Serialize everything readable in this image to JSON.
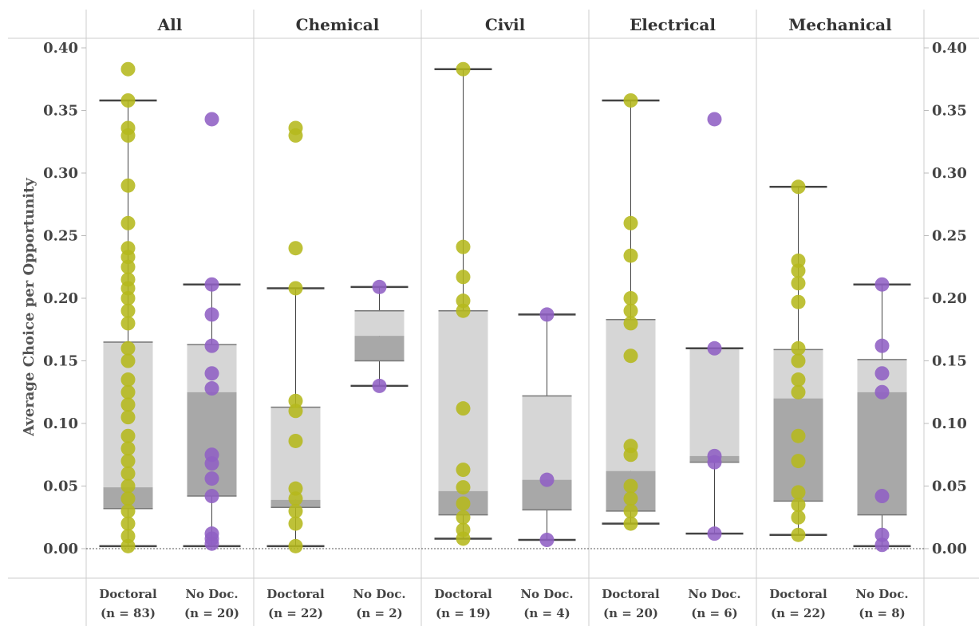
{
  "chart_data": {
    "type": "box",
    "ylabel": "Average Choice per Opportunity",
    "ylim": [
      0,
      0.4
    ],
    "yticks": [
      "0.00",
      "0.05",
      "0.10",
      "0.15",
      "0.20",
      "0.25",
      "0.30",
      "0.35",
      "0.40"
    ],
    "colors": {
      "Doctoral": "#b5b81c",
      "No Doc.": "#9060c4"
    },
    "panels": [
      {
        "title": "All",
        "groups": [
          {
            "label": "Doctoral",
            "n_label": "(n = 83)",
            "series": "Doctoral",
            "box": {
              "whisker_low": 0.002,
              "q1": 0.032,
              "median": 0.049,
              "q3": 0.165,
              "whisker_high": 0.358
            },
            "points": [
              0.383,
              0.358,
              0.336,
              0.33,
              0.29,
              0.26,
              0.24,
              0.233,
              0.225,
              0.215,
              0.208,
              0.2,
              0.19,
              0.18,
              0.16,
              0.15,
              0.135,
              0.125,
              0.115,
              0.105,
              0.09,
              0.08,
              0.07,
              0.06,
              0.05,
              0.04,
              0.03,
              0.02,
              0.01,
              0.002
            ]
          },
          {
            "label": "No Doc.",
            "n_label": "(n = 20)",
            "series": "No Doc.",
            "box": {
              "whisker_low": 0.002,
              "q1": 0.042,
              "median": 0.125,
              "q3": 0.163,
              "whisker_high": 0.211
            },
            "points": [
              0.343,
              0.211,
              0.187,
              0.162,
              0.14,
              0.128,
              0.075,
              0.068,
              0.056,
              0.042,
              0.012,
              0.008,
              0.004
            ]
          }
        ]
      },
      {
        "title": "Chemical",
        "groups": [
          {
            "label": "Doctoral",
            "n_label": "(n = 22)",
            "series": "Doctoral",
            "box": {
              "whisker_low": 0.002,
              "q1": 0.033,
              "median": 0.039,
              "q3": 0.113,
              "whisker_high": 0.208
            },
            "points": [
              0.336,
              0.33,
              0.24,
              0.208,
              0.118,
              0.11,
              0.086,
              0.048,
              0.04,
              0.03,
              0.02,
              0.002
            ]
          },
          {
            "label": "No Doc.",
            "n_label": "(n = 2)",
            "series": "No Doc.",
            "box": {
              "whisker_low": 0.13,
              "q1": 0.15,
              "median": 0.17,
              "q3": 0.19,
              "whisker_high": 0.209
            },
            "points": [
              0.209,
              0.13
            ]
          }
        ]
      },
      {
        "title": "Civil",
        "groups": [
          {
            "label": "Doctoral",
            "n_label": "(n = 19)",
            "series": "Doctoral",
            "box": {
              "whisker_low": 0.008,
              "q1": 0.027,
              "median": 0.046,
              "q3": 0.19,
              "whisker_high": 0.383
            },
            "points": [
              0.383,
              0.241,
              0.217,
              0.198,
              0.19,
              0.112,
              0.063,
              0.049,
              0.036,
              0.025,
              0.015,
              0.008
            ]
          },
          {
            "label": "No Doc.",
            "n_label": "(n = 4)",
            "series": "No Doc.",
            "box": {
              "whisker_low": 0.007,
              "q1": 0.031,
              "median": 0.055,
              "q3": 0.122,
              "whisker_high": 0.187
            },
            "points": [
              0.187,
              0.055,
              0.007
            ]
          }
        ]
      },
      {
        "title": "Electrical",
        "groups": [
          {
            "label": "Doctoral",
            "n_label": "(n = 20)",
            "series": "Doctoral",
            "box": {
              "whisker_low": 0.02,
              "q1": 0.03,
              "median": 0.062,
              "q3": 0.183,
              "whisker_high": 0.358
            },
            "points": [
              0.358,
              0.26,
              0.234,
              0.2,
              0.19,
              0.18,
              0.154,
              0.082,
              0.075,
              0.05,
              0.04,
              0.03,
              0.02
            ]
          },
          {
            "label": "No Doc.",
            "n_label": "(n = 6)",
            "series": "No Doc.",
            "box": {
              "whisker_low": 0.012,
              "q1": 0.069,
              "median": 0.074,
              "q3": 0.16,
              "whisker_high": 0.16
            },
            "points": [
              0.343,
              0.16,
              0.074,
              0.069,
              0.012
            ]
          }
        ]
      },
      {
        "title": "Mechanical",
        "groups": [
          {
            "label": "Doctoral",
            "n_label": "(n =  22)",
            "series": "Doctoral",
            "box": {
              "whisker_low": 0.011,
              "q1": 0.038,
              "median": 0.12,
              "q3": 0.159,
              "whisker_high": 0.289
            },
            "points": [
              0.289,
              0.23,
              0.222,
              0.212,
              0.197,
              0.16,
              0.15,
              0.135,
              0.125,
              0.09,
              0.07,
              0.045,
              0.035,
              0.025,
              0.011
            ]
          },
          {
            "label": "No Doc.",
            "n_label": "(n = 8)",
            "series": "No Doc.",
            "box": {
              "whisker_low": 0.002,
              "q1": 0.027,
              "median": 0.125,
              "q3": 0.151,
              "whisker_high": 0.211
            },
            "points": [
              0.211,
              0.162,
              0.14,
              0.125,
              0.042,
              0.011,
              0.003
            ]
          }
        ]
      }
    ]
  }
}
